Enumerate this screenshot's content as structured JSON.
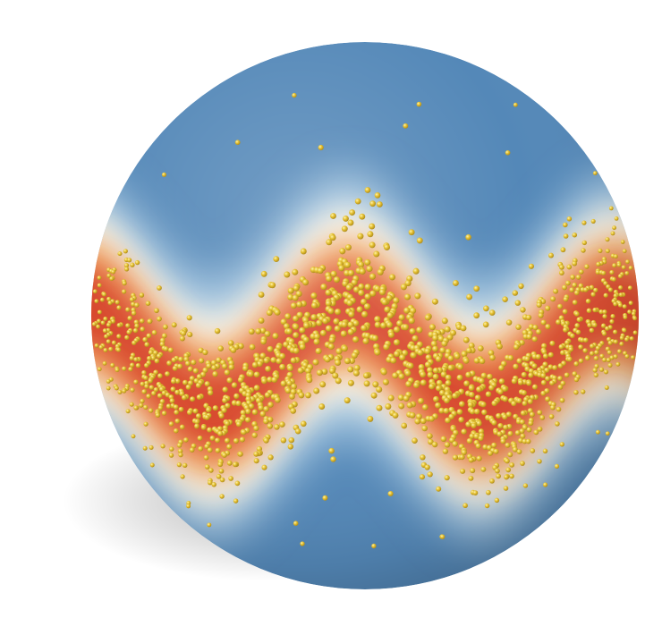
{
  "scene": {
    "subject": "sphere",
    "colormap": {
      "low": "#5488b8",
      "low_mid": "#9cc0dc",
      "mid": "#f4f1e6",
      "high_mid": "#f2a660",
      "high": "#d84a2e"
    },
    "particle_color": "#e6c233",
    "background": "#ffffff",
    "band": {
      "wave_periods": 2
    }
  }
}
